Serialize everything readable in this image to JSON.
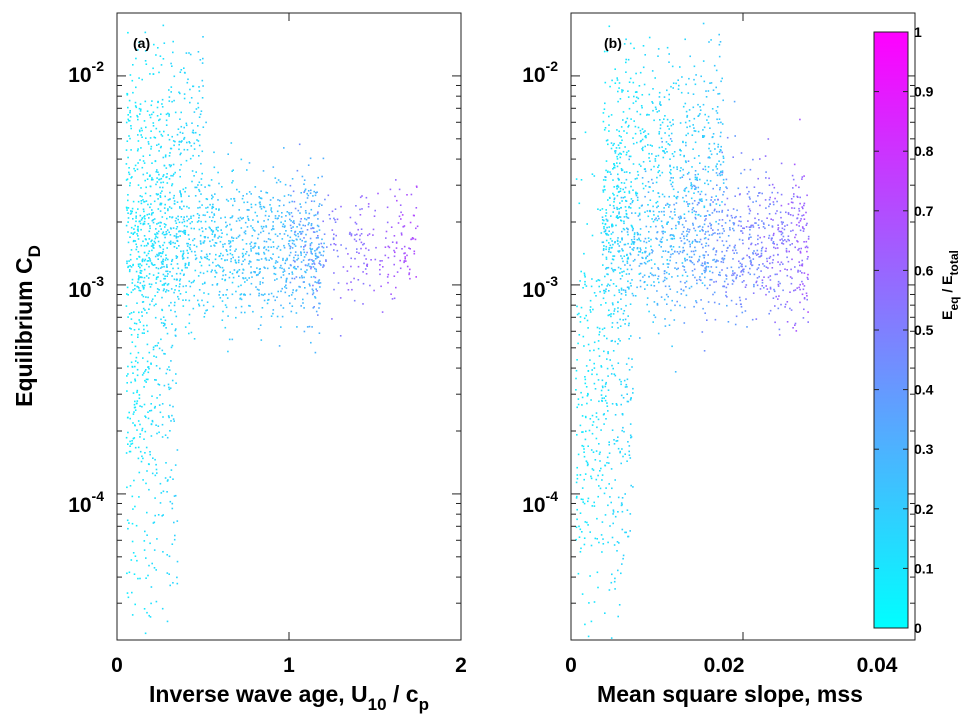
{
  "chart_data": [
    {
      "type": "scatter",
      "panel_label": "(a)",
      "xlabel": "Inverse wave age, U",
      "xlabel_sub1": "10",
      "xlabel_mid": " / c",
      "xlabel_sub2": "p",
      "ylabel": "Equilibrium C",
      "ylabel_sub": "D",
      "xlim": [
        0,
        2
      ],
      "ylim": [
        2e-05,
        0.02
      ],
      "yscale": "log",
      "xticks": [
        "0",
        "1",
        "2"
      ],
      "yticks": [
        {
          "base": "10",
          "exp": "-2"
        },
        {
          "base": "10",
          "exp": "-3"
        },
        {
          "base": "10",
          "exp": "-4"
        }
      ],
      "color_by": "E_eq / E_total",
      "cloud": [
        {
          "x": [
            0.05,
            1.2
          ],
          "logy_center": -2.82,
          "logy_spread": 0.18,
          "color_value": [
            0.05,
            0.35
          ],
          "weight": 0.55
        },
        {
          "x": [
            1.0,
            1.75
          ],
          "logy_center": -2.8,
          "logy_spread": 0.14,
          "color_value": [
            0.35,
            0.75
          ],
          "weight": 0.12
        },
        {
          "x": [
            0.05,
            0.35
          ],
          "logy_center": -3.5,
          "logy_spread": 0.55,
          "color_value": [
            0.05,
            0.2
          ],
          "weight": 0.18
        },
        {
          "x": [
            0.05,
            0.5
          ],
          "logy_center": -2.3,
          "logy_spread": 0.25,
          "color_value": [
            0.05,
            0.2
          ],
          "weight": 0.15
        }
      ]
    },
    {
      "type": "scatter",
      "panel_label": "(b)",
      "xlabel": "Mean square slope, mss",
      "xlim": [
        0,
        0.045
      ],
      "ylim": [
        2e-05,
        0.02
      ],
      "yscale": "log",
      "xticks": [
        "0",
        "0.02",
        "0.04"
      ],
      "yticks": [
        {
          "base": "10",
          "exp": "-2"
        },
        {
          "base": "10",
          "exp": "-3"
        },
        {
          "base": "10",
          "exp": "-4"
        }
      ],
      "color_by": "E_eq / E_total",
      "cloud": [
        {
          "x": [
            0.004,
            0.031
          ],
          "logy_center": -2.8,
          "logy_spread": 0.18,
          "color_value": [
            0.05,
            0.7
          ],
          "weight": 0.55
        },
        {
          "x": [
            0.0005,
            0.008
          ],
          "logy_center": -3.6,
          "logy_spread": 0.5,
          "color_value": [
            0.05,
            0.2
          ],
          "weight": 0.2
        },
        {
          "x": [
            0.004,
            0.02
          ],
          "logy_center": -2.35,
          "logy_spread": 0.25,
          "color_value": [
            0.05,
            0.25
          ],
          "weight": 0.25
        }
      ]
    }
  ],
  "colorbar": {
    "label_main": "E",
    "label_sub1": "eq",
    "label_mid": " / E",
    "label_sub2": "total",
    "range": [
      0,
      1
    ],
    "ticks": [
      "0",
      "0.1",
      "0.2",
      "0.3",
      "0.4",
      "0.5",
      "0.6",
      "0.7",
      "0.8",
      "0.9",
      "1"
    ],
    "color_low": "#00ffff",
    "color_high": "#ff00ff"
  }
}
